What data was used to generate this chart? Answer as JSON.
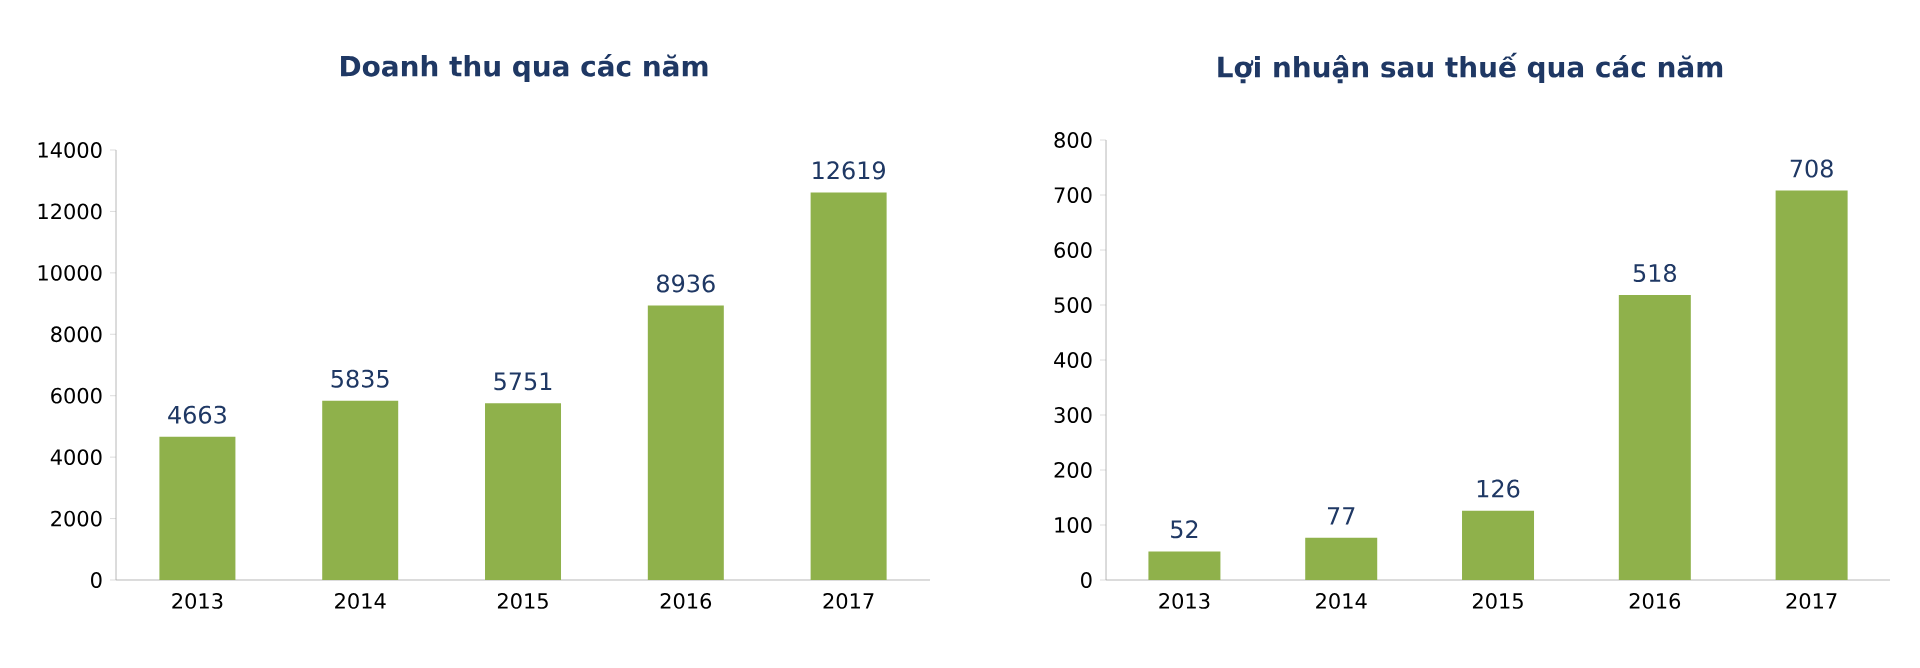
{
  "chart_data": [
    {
      "type": "bar",
      "title": "Doanh thu qua các năm",
      "categories": [
        "2013",
        "2014",
        "2015",
        "2016",
        "2017"
      ],
      "values": [
        4663,
        5835,
        5751,
        8936,
        12619
      ],
      "color": "#8fb14b",
      "ylim": [
        0,
        14000
      ],
      "yticks": [
        0,
        2000,
        4000,
        6000,
        8000,
        10000,
        12000,
        14000
      ],
      "data_labels": true
    },
    {
      "type": "bar",
      "title": "Lợi nhuận sau thuế qua các năm",
      "categories": [
        "2013",
        "2014",
        "2015",
        "2016",
        "2017"
      ],
      "values": [
        52,
        77,
        126,
        518,
        708
      ],
      "color": "#8fb14b",
      "ylim": [
        0,
        800
      ],
      "yticks": [
        0,
        100,
        200,
        300,
        400,
        500,
        600,
        700,
        800
      ],
      "data_labels": true
    }
  ]
}
